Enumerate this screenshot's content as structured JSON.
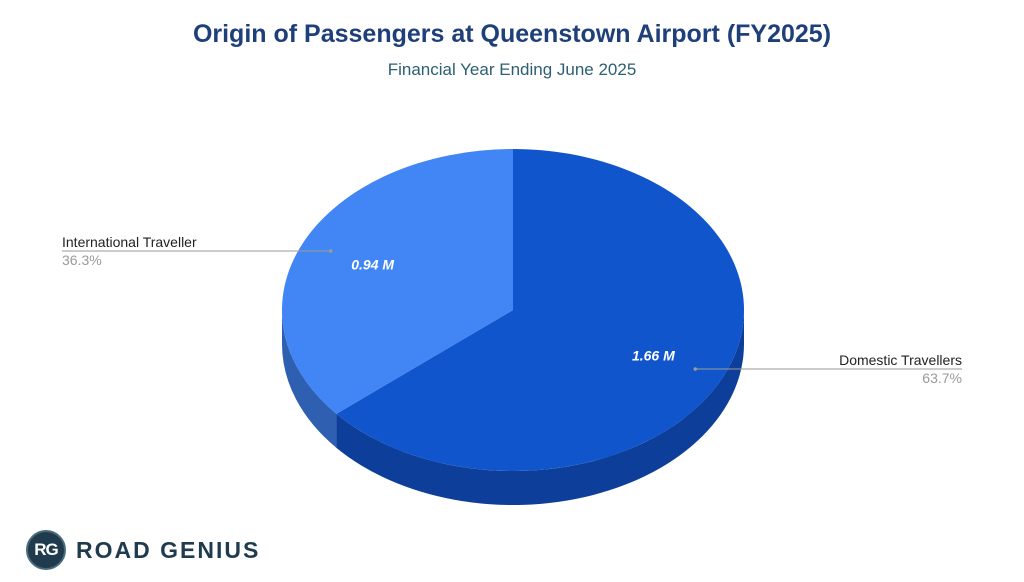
{
  "chart_data": {
    "type": "pie",
    "title": "Origin of Passengers at Queenstown Airport (FY2025)",
    "subtitle": "Financial Year Ending June 2025",
    "slices": [
      {
        "name": "Domestic Travellers",
        "value": 1.66,
        "value_label": "1.66 M",
        "percent": 63.7,
        "percent_label": "63.7%",
        "color": "#1155cc",
        "side_color": "#0d3f9a"
      },
      {
        "name": "International Traveller",
        "value": 0.94,
        "value_label": "0.94 M",
        "percent": 36.3,
        "percent_label": "36.3%",
        "color": "#4285f4",
        "side_color": "#2f5fb0"
      }
    ],
    "start_angle": "12 o'clock",
    "direction": "clockwise",
    "style": "3d",
    "legend": "callouts"
  },
  "branding": {
    "logo_initials": "RG",
    "logo_text": "ROAD GENIUS"
  }
}
